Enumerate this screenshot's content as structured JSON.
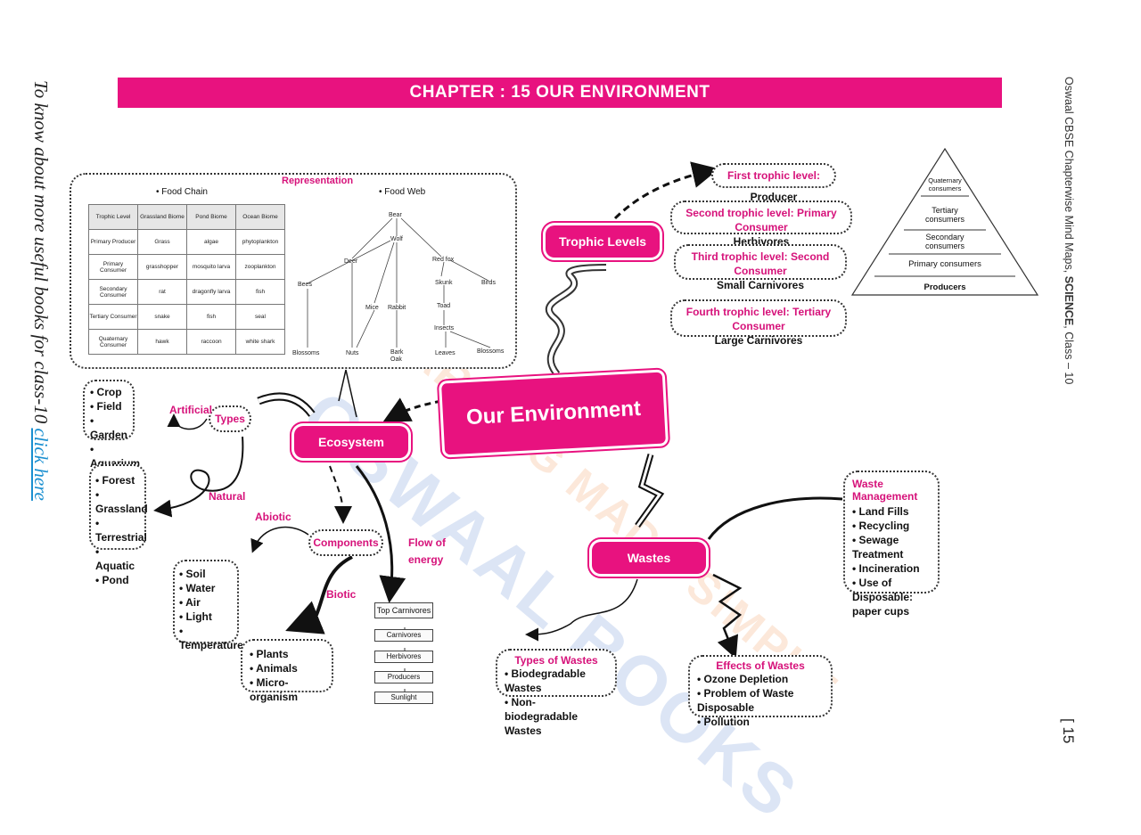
{
  "side_left": {
    "text": "To know about more useful books for class-10 ",
    "link": "click here"
  },
  "side_right": {
    "prefix": "Oswaal CBSE Chapterwise Mind Maps, ",
    "subject": "SCIENCE",
    "suffix": ", Class – 10"
  },
  "page_number": "[ 15",
  "banner": {
    "title": "CHAPTER : 15 OUR ENVIRONMENT"
  },
  "watermark": {
    "line1": "OSWAAL BOOKS",
    "line2": "LEARNING MADE SIMPLE"
  },
  "center": {
    "title": "Our Environment"
  },
  "representation": {
    "label": "Representation",
    "food_chain_title": "• Food Chain",
    "food_web_title": "• Food Web",
    "table": [
      [
        "Trophic Level",
        "Grassland Biome",
        "Pond Biome",
        "Ocean Biome"
      ],
      [
        "Primary Producer",
        "Grass",
        "algae",
        "phytoplankton"
      ],
      [
        "Primary Consumer",
        "grasshopper",
        "mosquito larva",
        "zooplankton"
      ],
      [
        "Secondary Consumer",
        "rat",
        "dragonfly larva",
        "fish"
      ],
      [
        "Tertiary Consumer",
        "snake",
        "fish",
        "seal"
      ],
      [
        "Quaternary Consumer",
        "hawk",
        "raccoon",
        "white shark"
      ]
    ],
    "food_web": {
      "bear": "Bear",
      "wolf": "Wolf",
      "deer": "Deer",
      "red_fox": "Red fox",
      "skunk": "Skunk",
      "bees": "Bees",
      "birds": "Birds",
      "mice": "Mice",
      "rabbit": "Rabbit",
      "toad": "Toad",
      "insects": "Insects",
      "blossoms1": "Blossoms",
      "nuts": "Nuts",
      "bark_oak": "Bark Oak",
      "leaves": "Leaves",
      "blossoms2": "Blossoms"
    }
  },
  "trophic": {
    "title": "Trophic Levels",
    "levels": [
      {
        "head": "First trophic level:",
        "tail": " Producer",
        "sub": ""
      },
      {
        "head": "Second trophic level: Primary Consumer",
        "tail": "",
        "sub": "Herbivores"
      },
      {
        "head": "Third trophic level: Second Consumer",
        "tail": "",
        "sub": "Small Carnivores"
      },
      {
        "head": "Fourth trophic level: Tertiary Consumer",
        "tail": "",
        "sub": "Large Carnivores"
      }
    ],
    "pyramid": [
      "Quaternary consumers",
      "Tertiary consumers",
      "Secondary consumers",
      "Primary consumers",
      "Producers"
    ]
  },
  "ecosystem": {
    "title": "Ecosystem",
    "types_label": "Types",
    "artificial_label": "Artificial",
    "artificial_items": [
      "Crop",
      "Field",
      "Garden",
      "Aquarium"
    ],
    "natural_label": "Natural",
    "natural_items": [
      "Forest",
      "Grassland",
      "Terrestrial",
      "Aquatic",
      "Pond"
    ],
    "components_label": "Components",
    "abiotic_label": "Abiotic",
    "abiotic_items": [
      "Soil",
      "Water",
      "Air",
      "Light",
      "Temperature"
    ],
    "biotic_label": "Biotic",
    "biotic_items": [
      "Plants",
      "Animals",
      "Micro-organism"
    ],
    "flow_label": "Flow of energy",
    "energy_levels": [
      "Top Carnivores",
      "Carnivores",
      "Herbivores",
      "Producers",
      "Sunlight"
    ]
  },
  "wastes": {
    "title": "Wastes",
    "management_title": "Waste Management",
    "management_items": [
      "Land Fills",
      "Recycling",
      "Sewage Treatment",
      "Incineration",
      "Use of Disposable: paper cups"
    ],
    "types_title": "Types of Wastes",
    "types_items": [
      "Biodegradable Wastes",
      "Non-biodegradable Wastes"
    ],
    "effects_title": "Effects of Wastes",
    "effects_items": [
      "Ozone Depletion",
      "Problem of Waste Disposable",
      "Pollution"
    ]
  },
  "colors": {
    "accent": "#e8127f",
    "text_magenta": "#d6127a",
    "link": "#1a8fd0"
  }
}
